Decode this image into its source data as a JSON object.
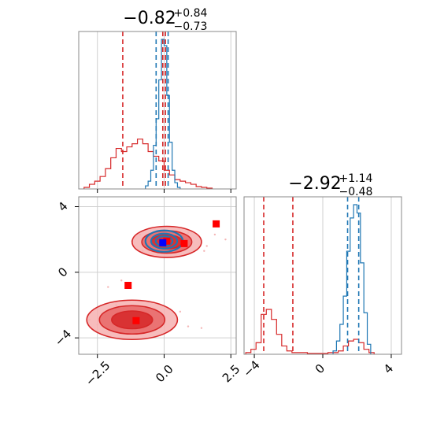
{
  "chart_data": [
    {
      "panel": "marginal-1",
      "type": "histogram",
      "title": {
        "value": "−0.82",
        "sup": "+0.84",
        "sub": "−0.73"
      },
      "xlim": [
        -3.2,
        2.7
      ],
      "grid": true,
      "series": [
        {
          "color": "#d62728",
          "bins": [
            -3.0,
            -2.8,
            -2.6,
            -2.4,
            -2.2,
            -2.0,
            -1.8,
            -1.6,
            -1.4,
            -1.2,
            -1.0,
            -0.8,
            -0.6,
            -0.4,
            -0.2,
            0.0,
            0.2,
            0.4,
            0.6,
            0.8,
            1.0,
            1.2,
            1.4,
            1.6,
            1.8
          ],
          "values": [
            0.01,
            0.03,
            0.05,
            0.08,
            0.13,
            0.2,
            0.26,
            0.24,
            0.27,
            0.29,
            0.32,
            0.29,
            0.24,
            0.21,
            0.18,
            0.12,
            0.09,
            0.06,
            0.05,
            0.04,
            0.03,
            0.015,
            0.01,
            0.005
          ],
          "quantile_lines": [
            -1.55,
            -0.05,
            0.05
          ]
        },
        {
          "color": "#1f77b4",
          "bins": [
            -0.7,
            -0.6,
            -0.5,
            -0.4,
            -0.3,
            -0.2,
            -0.1,
            0.0,
            0.1,
            0.2,
            0.3,
            0.4,
            0.5,
            0.6
          ],
          "values": [
            0.02,
            0.05,
            0.12,
            0.28,
            0.45,
            0.7,
            0.96,
            0.92,
            0.6,
            0.3,
            0.12,
            0.04,
            0.01
          ],
          "quantile_lines": [
            -0.3,
            0.15
          ]
        }
      ],
      "xticks": [
        "−2.5",
        "0.0",
        "2.5"
      ]
    },
    {
      "panel": "marginal-2",
      "type": "histogram",
      "title": {
        "value": "−2.92",
        "sup": "+1.14",
        "sub": "−0.48"
      },
      "xlim": [
        -4.6,
        4.6
      ],
      "grid": true,
      "series": [
        {
          "color": "#d62728",
          "bins": [
            -4.5,
            -4.2,
            -3.9,
            -3.6,
            -3.3,
            -3.0,
            -2.7,
            -2.4,
            -2.1,
            -1.8,
            -1.5,
            -1.2,
            -0.9,
            -0.6,
            -0.3,
            0.0,
            0.3,
            0.6,
            0.9,
            1.2,
            1.5,
            1.8,
            2.1,
            2.4,
            2.7,
            3.0
          ],
          "values": [
            0.01,
            0.03,
            0.07,
            0.24,
            0.27,
            0.21,
            0.12,
            0.05,
            0.02,
            0.01,
            0.01,
            0.01,
            0.005,
            0.005,
            0.005,
            0.005,
            0.01,
            0.01,
            0.02,
            0.05,
            0.08,
            0.09,
            0.07,
            0.03,
            0.01
          ],
          "quantile_lines": [
            -3.45,
            -1.75
          ]
        },
        {
          "color": "#1f77b4",
          "bins": [
            0.6,
            0.8,
            1.0,
            1.2,
            1.4,
            1.6,
            1.8,
            2.0,
            2.2,
            2.4,
            2.6,
            2.8
          ],
          "values": [
            0.02,
            0.08,
            0.18,
            0.35,
            0.62,
            0.82,
            0.9,
            0.85,
            0.55,
            0.25,
            0.06
          ],
          "quantile_lines": [
            1.45,
            2.1
          ]
        }
      ],
      "xticks": [
        "−4",
        "0",
        "4"
      ]
    },
    {
      "panel": "joint",
      "type": "contour",
      "xlim": [
        -3.2,
        2.7
      ],
      "ylim": [
        -5.0,
        4.6
      ],
      "grid": true,
      "xticks": [
        "−2.5",
        "0.0",
        "2.5"
      ],
      "yticks": [
        "4",
        "0",
        "−4"
      ],
      "contours": [
        {
          "color": "#d62728",
          "center": [
            -1.2,
            -2.9
          ],
          "rx": 1.7,
          "ry": 1.2
        },
        {
          "color": "#d62728",
          "center": [
            0.1,
            1.85
          ],
          "rx": 1.3,
          "ry": 0.95
        },
        {
          "color": "#1f77b4",
          "center": [
            0.0,
            1.9
          ],
          "rx": 0.7,
          "ry": 0.65
        }
      ],
      "markers": [
        {
          "color": "#ff0000",
          "x": 1.95,
          "y": 2.95
        },
        {
          "color": "#ff0000",
          "x": 0.75,
          "y": 1.75
        },
        {
          "color": "#ff0000",
          "x": 0.1,
          "y": 1.9
        },
        {
          "color": "#ff0000",
          "x": -1.35,
          "y": -0.8
        },
        {
          "color": "#ff0000",
          "x": -1.05,
          "y": -2.95
        },
        {
          "color": "#0000ff",
          "x": -0.05,
          "y": 1.8
        }
      ]
    }
  ]
}
